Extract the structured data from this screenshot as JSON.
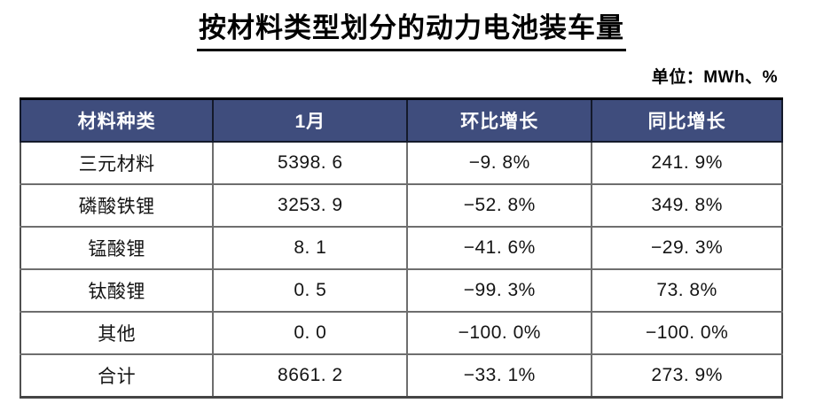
{
  "title": "按材料类型划分的动力电池装车量",
  "unit_label": "单位：MWh、%",
  "colors": {
    "header_bg": "#3F4D7D",
    "header_text": "#FFFFFF",
    "grid": "#6E6E6E",
    "outer_border": "#000000",
    "body_text": "#141414"
  },
  "table": {
    "headers": [
      "材料种类",
      "1月",
      "环比增长",
      "同比增长"
    ],
    "rows": [
      [
        "三元材料",
        "5398. 6",
        "−9. 8%",
        "241. 9%"
      ],
      [
        "磷酸铁锂",
        "3253. 9",
        "−52. 8%",
        "349. 8%"
      ],
      [
        "锰酸锂",
        "8. 1",
        "−41. 6%",
        "−29. 3%"
      ],
      [
        "钛酸锂",
        "0. 5",
        "−99. 3%",
        "73. 8%"
      ],
      [
        "其他",
        "0. 0",
        "−100. 0%",
        "−100. 0%"
      ],
      [
        "合计",
        "8661. 2",
        "−33. 1%",
        "273. 9%"
      ]
    ]
  },
  "chart_data": {
    "type": "table",
    "title": "按材料类型划分的动力电池装车量",
    "unit": "MWh、%",
    "columns": [
      "材料种类",
      "1月",
      "环比增长",
      "同比增长"
    ],
    "rows": [
      {
        "material": "三元材料",
        "jan_mwh": 5398.6,
        "mom_pct": -9.8,
        "yoy_pct": 241.9
      },
      {
        "material": "磷酸铁锂",
        "jan_mwh": 3253.9,
        "mom_pct": -52.8,
        "yoy_pct": 349.8
      },
      {
        "material": "锰酸锂",
        "jan_mwh": 8.1,
        "mom_pct": -41.6,
        "yoy_pct": -29.3
      },
      {
        "material": "钛酸锂",
        "jan_mwh": 0.5,
        "mom_pct": -99.3,
        "yoy_pct": 73.8
      },
      {
        "material": "其他",
        "jan_mwh": 0.0,
        "mom_pct": -100.0,
        "yoy_pct": -100.0
      },
      {
        "material": "合计",
        "jan_mwh": 8661.2,
        "mom_pct": -33.1,
        "yoy_pct": 273.9
      }
    ]
  }
}
